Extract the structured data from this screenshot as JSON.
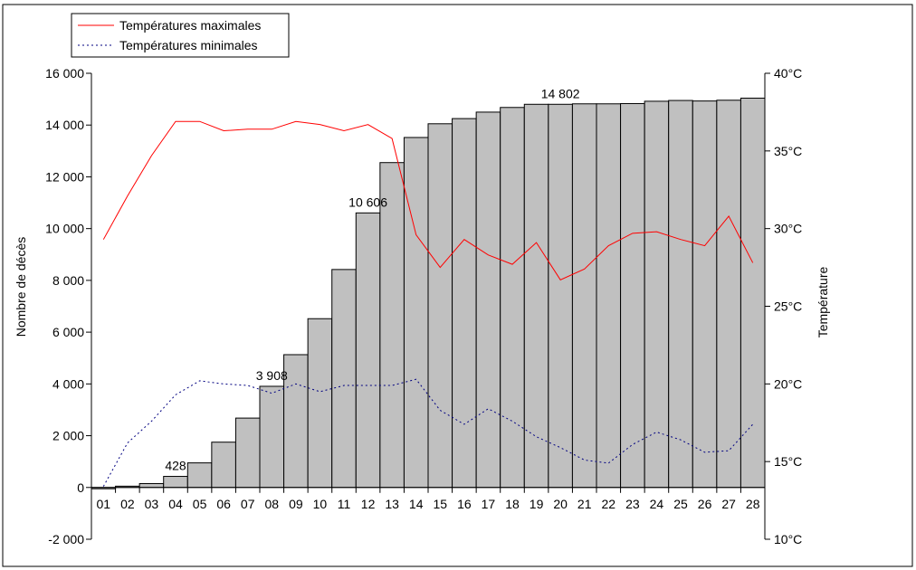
{
  "chart_data": {
    "type": "bar",
    "categories": [
      "01",
      "02",
      "03",
      "04",
      "05",
      "06",
      "07",
      "08",
      "09",
      "10",
      "11",
      "12",
      "13",
      "14",
      "15",
      "16",
      "17",
      "18",
      "19",
      "20",
      "21",
      "22",
      "23",
      "24",
      "25",
      "26",
      "27",
      "28"
    ],
    "series": [
      {
        "name": "",
        "kind": "bar",
        "axis": "left",
        "values": [
          -50,
          50,
          150,
          428,
          950,
          1750,
          2680,
          3908,
          5130,
          6520,
          8420,
          10606,
          12550,
          13520,
          14050,
          14250,
          14500,
          14680,
          14802,
          14802,
          14820,
          14820,
          14830,
          14920,
          14950,
          14930,
          14960,
          15040
        ]
      },
      {
        "name": "Températures maximales",
        "kind": "line",
        "axis": "right",
        "style": "solid",
        "values": [
          29.3,
          32.1,
          34.7,
          36.9,
          36.9,
          36.3,
          36.4,
          36.4,
          36.9,
          36.7,
          36.3,
          36.7,
          35.8,
          29.6,
          27.5,
          29.3,
          28.3,
          27.7,
          29.1,
          26.7,
          27.4,
          28.9,
          29.7,
          29.8,
          29.3,
          28.9,
          30.8,
          27.8
        ]
      },
      {
        "name": "Températures minimales",
        "kind": "line",
        "axis": "right",
        "style": "dotted",
        "values": [
          13.4,
          16.2,
          17.6,
          19.3,
          20.2,
          20.0,
          19.9,
          19.4,
          20.0,
          19.5,
          19.9,
          19.9,
          19.9,
          20.3,
          18.3,
          17.4,
          18.4,
          17.6,
          16.6,
          15.9,
          15.1,
          14.9,
          16.1,
          16.9,
          16.4,
          15.6,
          15.7,
          17.4
        ]
      }
    ],
    "data_labels": [
      {
        "category": "04",
        "text": "428"
      },
      {
        "category": "08",
        "text": "3 908"
      },
      {
        "category": "12",
        "text": "10 606"
      },
      {
        "category": "20",
        "text": "14 802"
      }
    ],
    "y_left": {
      "label": "Nombre de décès",
      "ylim": [
        -2000,
        16000
      ],
      "ticks": [
        -2000,
        0,
        2000,
        4000,
        6000,
        8000,
        10000,
        12000,
        14000,
        16000
      ],
      "tick_labels": [
        "-2 000",
        "0",
        "2 000",
        "4 000",
        "6 000",
        "8 000",
        "10 000",
        "12 000",
        "14 000",
        "16 000"
      ]
    },
    "y_right": {
      "label": "Température",
      "ylim": [
        10,
        40
      ],
      "ticks": [
        10,
        15,
        20,
        25,
        30,
        35,
        40
      ],
      "tick_labels": [
        "10°C",
        "15°C",
        "20°C",
        "25°C",
        "30°C",
        "35°C",
        "40°C"
      ]
    },
    "legend": {
      "position": "top-left",
      "entries": [
        "Températures maximales",
        "Températures minimales"
      ]
    },
    "grid": false,
    "colors": {
      "bar_fill": "#c0c0c0",
      "bar_stroke": "#000000",
      "max_line": "#ff0000",
      "min_line": "#000080"
    }
  }
}
